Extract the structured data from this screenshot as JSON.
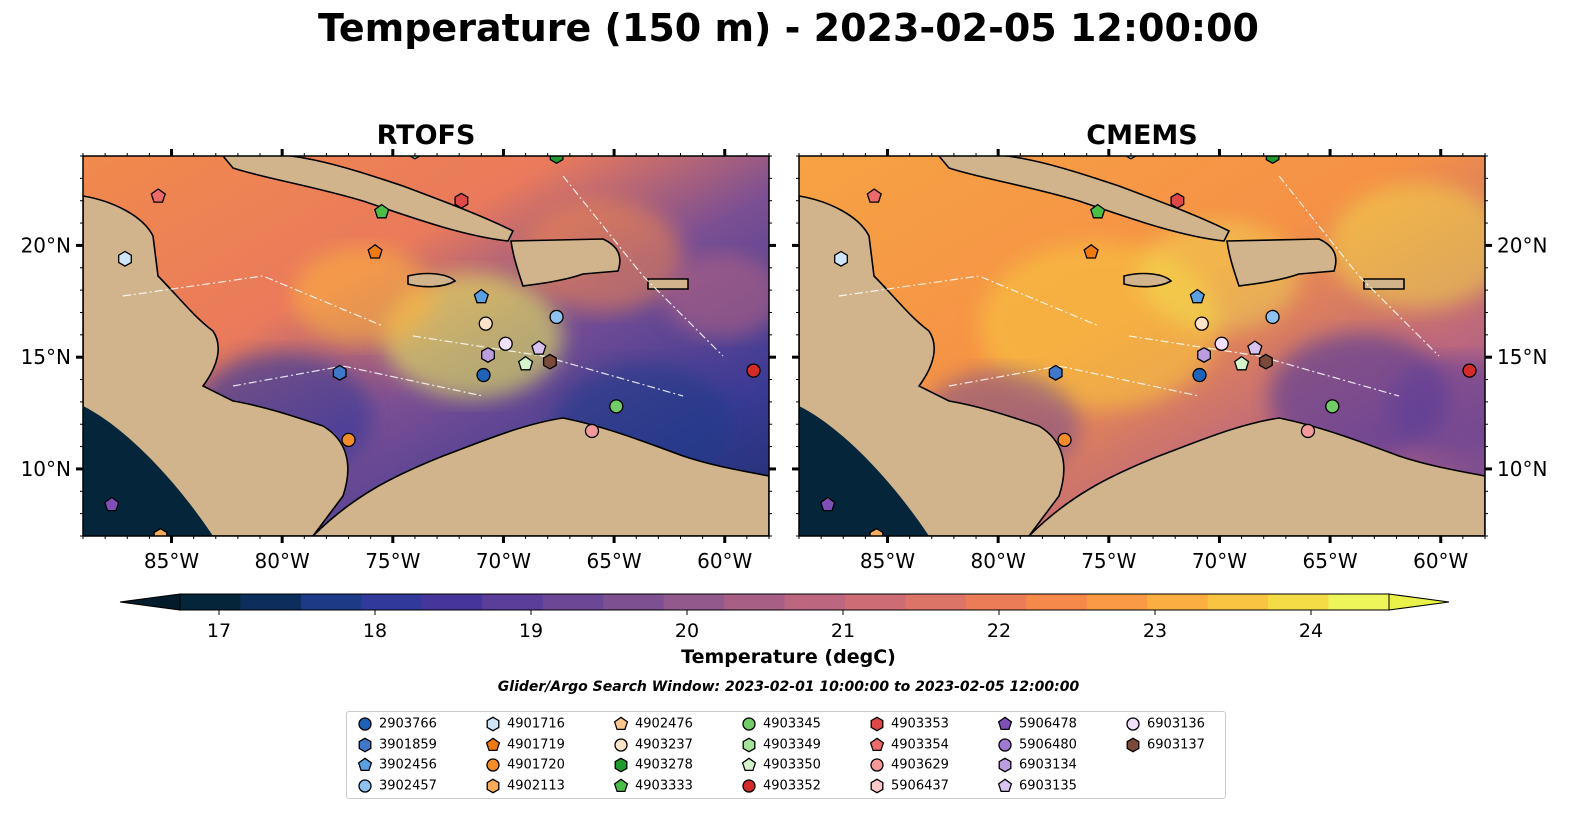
{
  "title": "Temperature (150 m) - 2023-02-05 12:00:00",
  "panels": [
    {
      "title": "RTOFS"
    },
    {
      "title": "CMEMS"
    }
  ],
  "lon_ticks": [
    "85°W",
    "80°W",
    "75°W",
    "70°W",
    "65°W",
    "60°W"
  ],
  "lon_values": [
    -85,
    -80,
    -75,
    -70,
    -65,
    -60
  ],
  "lat_ticks": [
    "20°N",
    "15°N",
    "10°N"
  ],
  "lat_values": [
    20,
    15,
    10
  ],
  "extent": {
    "lon_min": -89,
    "lon_max": -58,
    "lat_min": 7,
    "lat_max": 24
  },
  "colorbar": {
    "label": "Temperature (degC)",
    "min": 16.75,
    "max": 24.5,
    "ticks": [
      "17",
      "18",
      "19",
      "20",
      "21",
      "22",
      "23",
      "24"
    ],
    "tick_values": [
      17,
      18,
      19,
      20,
      21,
      22,
      23,
      24
    ],
    "colors": [
      "#05263a",
      "#0d2d5c",
      "#1d3a86",
      "#31399a",
      "#46369c",
      "#5a3e99",
      "#6b4795",
      "#7d5191",
      "#925a8c",
      "#a85f86",
      "#bd6680",
      "#cd6c75",
      "#dd7468",
      "#ea7d58",
      "#f5894a",
      "#fa9a44",
      "#fbaf40",
      "#f8c441",
      "#f4dc46",
      "#eef55a"
    ]
  },
  "search_window": "Glider/Argo Search Window: 2023-02-01 10:00:00 to 2023-02-05 12:00:00",
  "legend": [
    {
      "id": "2903766",
      "color": "#1f63b8",
      "shape": "circle"
    },
    {
      "id": "3901859",
      "color": "#3f78c8",
      "shape": "hexagon"
    },
    {
      "id": "3902456",
      "color": "#5aa0e0",
      "shape": "pentagon"
    },
    {
      "id": "3902457",
      "color": "#8ec2f0",
      "shape": "circle"
    },
    {
      "id": "4901716",
      "color": "#d0e6f8",
      "shape": "hexagon"
    },
    {
      "id": "4901719",
      "color": "#f07a12",
      "shape": "pentagon"
    },
    {
      "id": "4901720",
      "color": "#f58c2a",
      "shape": "circle"
    },
    {
      "id": "4902113",
      "color": "#f9ad5c",
      "shape": "hexagon"
    },
    {
      "id": "4902476",
      "color": "#fcc88e",
      "shape": "pentagon"
    },
    {
      "id": "4903237",
      "color": "#fde3c8",
      "shape": "circle"
    },
    {
      "id": "4903278",
      "color": "#1e9b2c",
      "shape": "hexagon"
    },
    {
      "id": "4903333",
      "color": "#4bbf45",
      "shape": "pentagon"
    },
    {
      "id": "4903345",
      "color": "#72cc68",
      "shape": "circle"
    },
    {
      "id": "4903349",
      "color": "#a6e39a",
      "shape": "hexagon"
    },
    {
      "id": "4903350",
      "color": "#d4f4cc",
      "shape": "pentagon"
    },
    {
      "id": "4903352",
      "color": "#d42a2a",
      "shape": "circle"
    },
    {
      "id": "4903353",
      "color": "#e04848",
      "shape": "hexagon"
    },
    {
      "id": "4903354",
      "color": "#ec6a6a",
      "shape": "pentagon"
    },
    {
      "id": "4903629",
      "color": "#f59a9a",
      "shape": "circle"
    },
    {
      "id": "5906437",
      "color": "#fbc8c8",
      "shape": "hexagon"
    },
    {
      "id": "5906478",
      "color": "#7f4fb8",
      "shape": "pentagon"
    },
    {
      "id": "5906480",
      "color": "#a07ad0",
      "shape": "circle"
    },
    {
      "id": "6903134",
      "color": "#bc9ee0",
      "shape": "hexagon"
    },
    {
      "id": "6903135",
      "color": "#d8c2f0",
      "shape": "pentagon"
    },
    {
      "id": "6903136",
      "color": "#f0e0fa",
      "shape": "circle"
    },
    {
      "id": "6903137",
      "color": "#7a4a3a",
      "shape": "hexagon"
    }
  ],
  "markers": [
    {
      "id": "2903766",
      "lon": -70.9,
      "lat": 14.2
    },
    {
      "id": "3901859",
      "lon": -77.4,
      "lat": 14.3
    },
    {
      "id": "3902456",
      "lon": -71.0,
      "lat": 17.7
    },
    {
      "id": "3902457",
      "lon": -67.6,
      "lat": 16.8
    },
    {
      "id": "4901716",
      "lon": -87.1,
      "lat": 19.4
    },
    {
      "id": "4901719",
      "lon": -75.8,
      "lat": 19.7
    },
    {
      "id": "4901720",
      "lon": -77.0,
      "lat": 11.3
    },
    {
      "id": "4902113",
      "lon": -85.5,
      "lat": 7.0
    },
    {
      "id": "4903237",
      "lon": -70.8,
      "lat": 16.5
    },
    {
      "id": "4903278",
      "lon": -67.6,
      "lat": 24.0
    },
    {
      "id": "4903333",
      "lon": -75.5,
      "lat": 21.5
    },
    {
      "id": "4903345",
      "lon": -64.9,
      "lat": 12.8
    },
    {
      "id": "4903349",
      "lon": -74.0,
      "lat": 24.2
    },
    {
      "id": "4903350",
      "lon": -69.0,
      "lat": 14.7
    },
    {
      "id": "4903352",
      "lon": -58.7,
      "lat": 14.4
    },
    {
      "id": "4903353",
      "lon": -71.9,
      "lat": 22.0
    },
    {
      "id": "4903354",
      "lon": -85.6,
      "lat": 22.2
    },
    {
      "id": "4903629",
      "lon": -66.0,
      "lat": 11.7
    },
    {
      "id": "5906478",
      "lon": -87.7,
      "lat": 8.4
    },
    {
      "id": "6903134",
      "lon": -70.7,
      "lat": 15.1
    },
    {
      "id": "6903135",
      "lon": -68.4,
      "lat": 15.4
    },
    {
      "id": "6903136",
      "lon": -69.9,
      "lat": 15.6
    },
    {
      "id": "6903137",
      "lon": -67.9,
      "lat": 14.8
    }
  ]
}
